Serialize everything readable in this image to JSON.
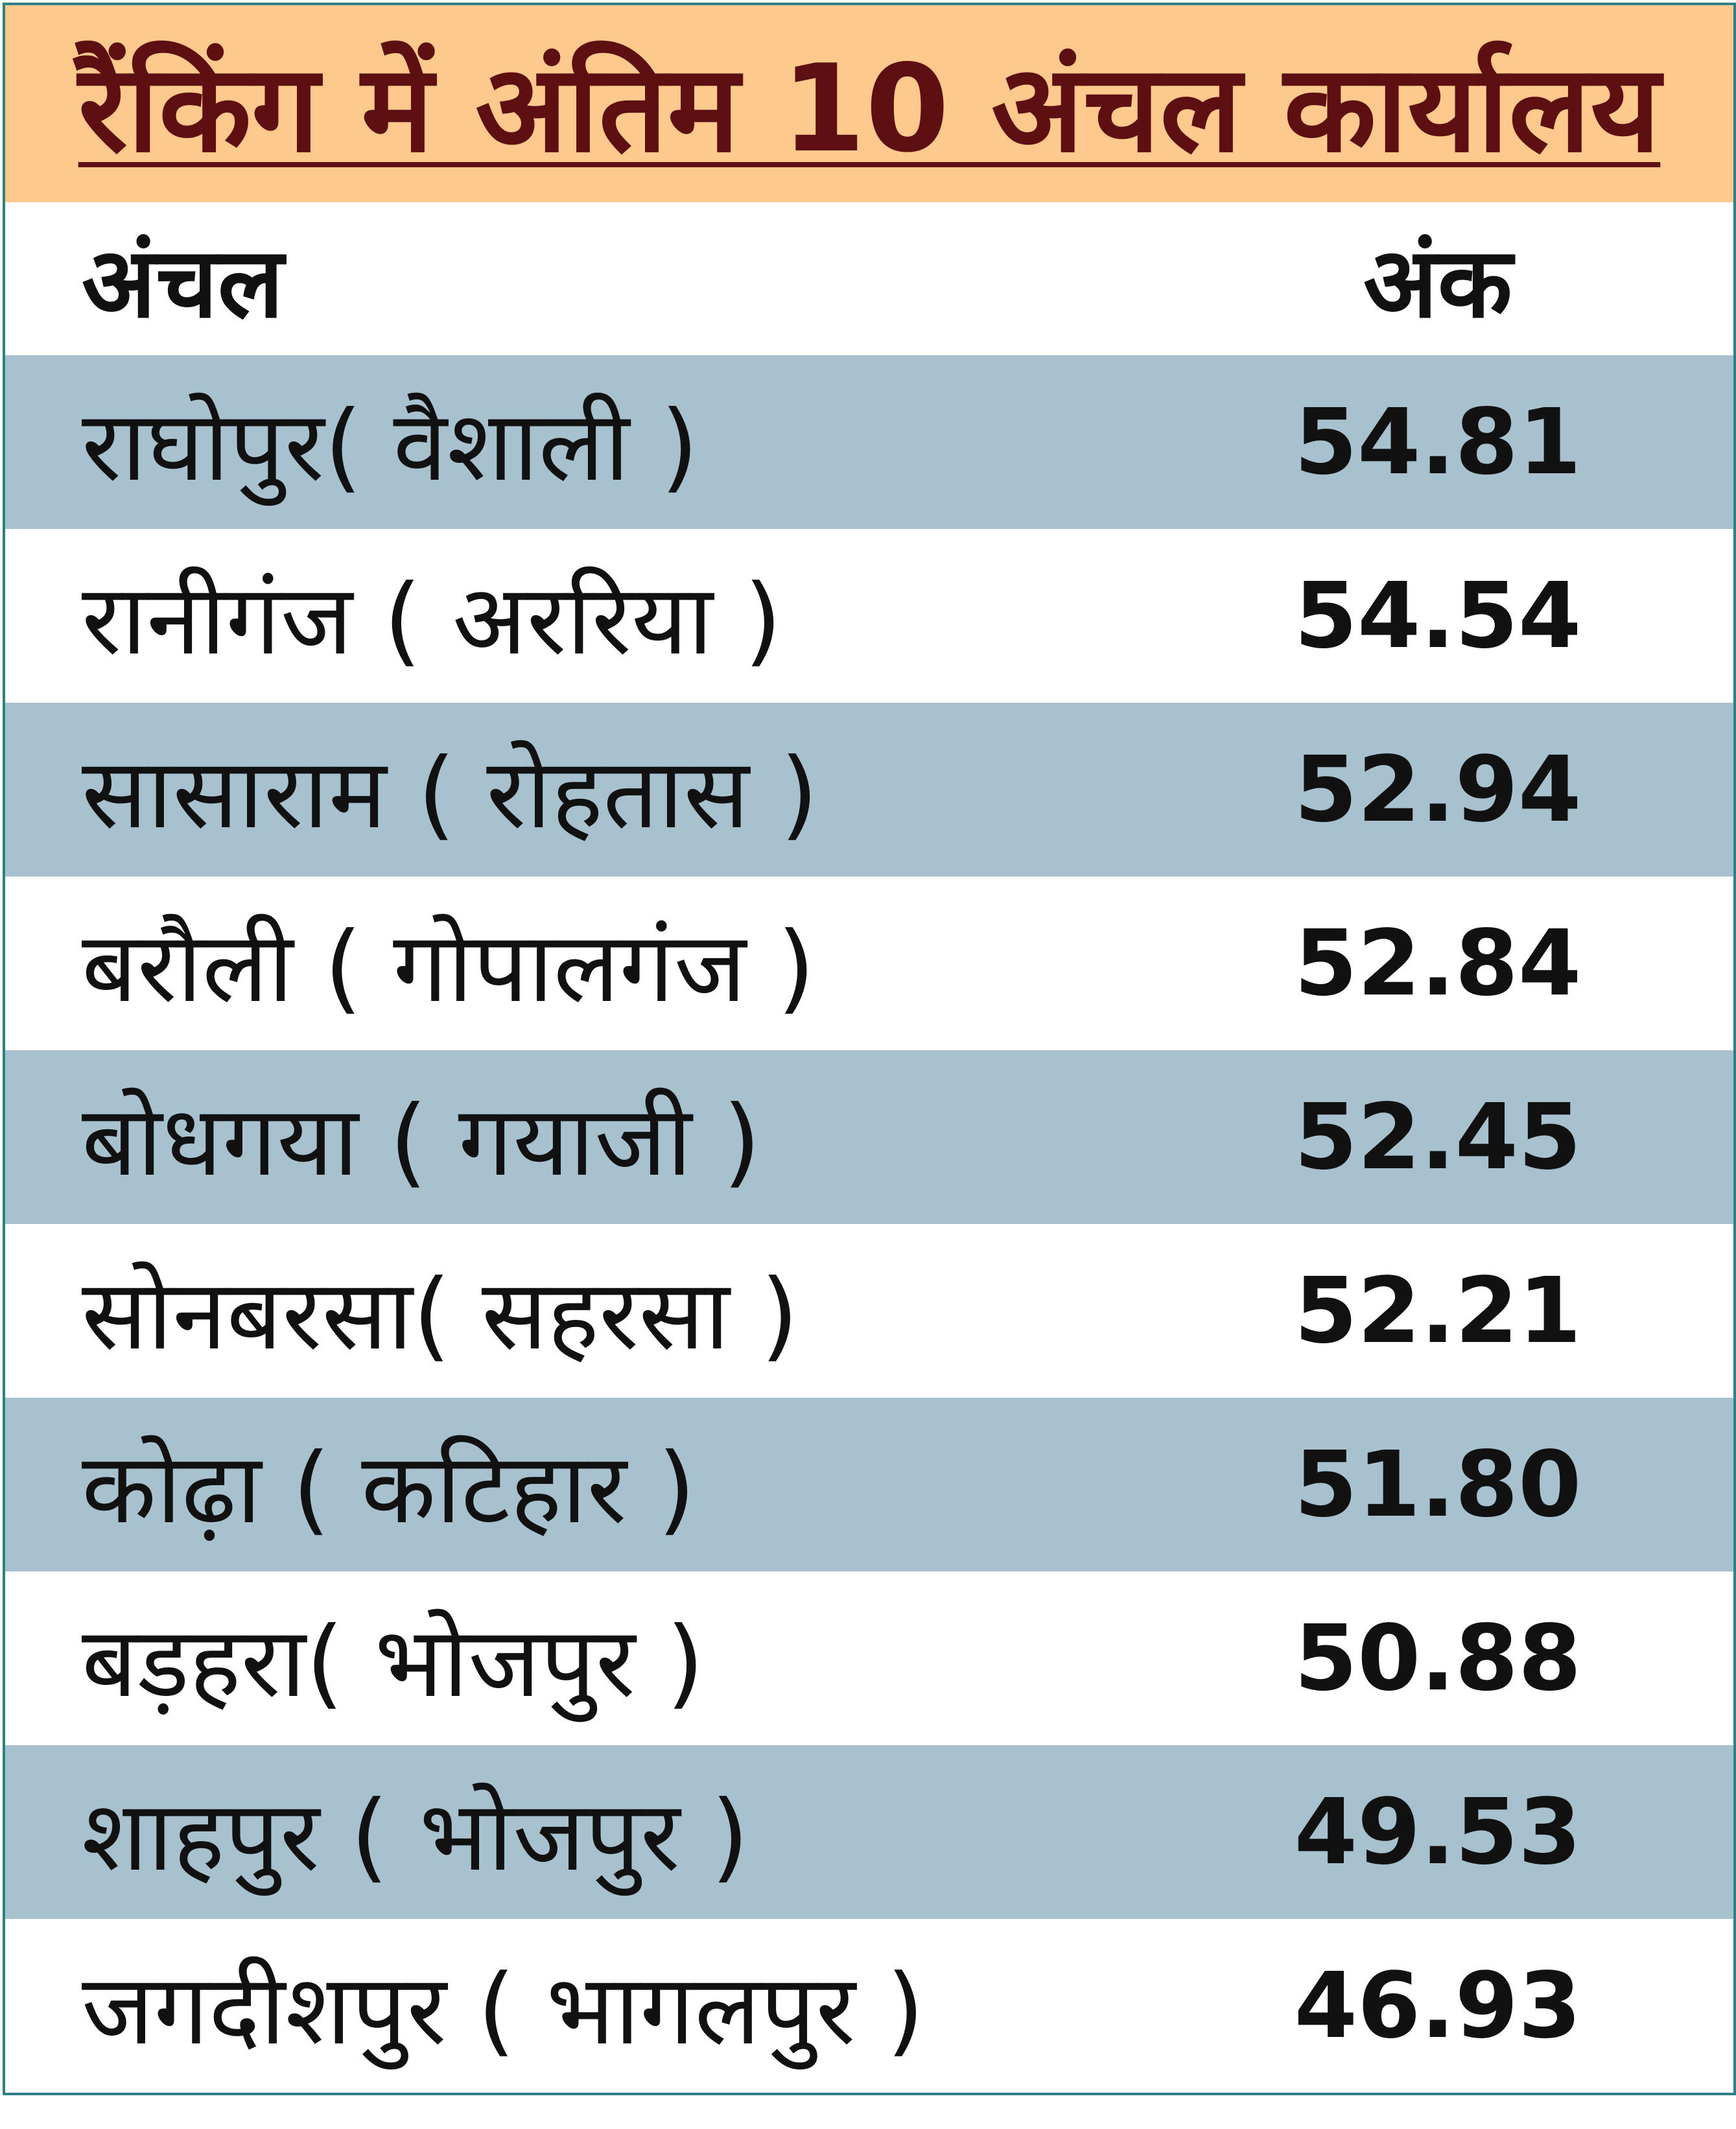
{
  "header": {
    "title": "रैंकिंग में अंतिम 10 अंचल कार्यालय"
  },
  "table": {
    "columns": [
      "अंचल",
      "अंक"
    ],
    "rows": [
      [
        "राघोपुर( वैशाली )",
        "54.81"
      ],
      [
        "रानीगंज ( अररिया )",
        "54.54"
      ],
      [
        "सासाराम ( रोहतास )",
        "52.94"
      ],
      [
        "बरौली ( गोपालगंज )",
        "52.84"
      ],
      [
        "बोधगया ( गयाजी )",
        "52.45"
      ],
      [
        "सोनबरसा( सहरसा )",
        "52.21"
      ],
      [
        "कोढ़ा ( कटिहार )",
        "51.80"
      ],
      [
        "बड़हरा( भोजपुर )",
        "50.88"
      ],
      [
        "शाहपुर ( भोजपुर )",
        "49.53"
      ],
      [
        "जगदीशपुर ( भागलपुर )",
        "46.93"
      ]
    ]
  }
}
